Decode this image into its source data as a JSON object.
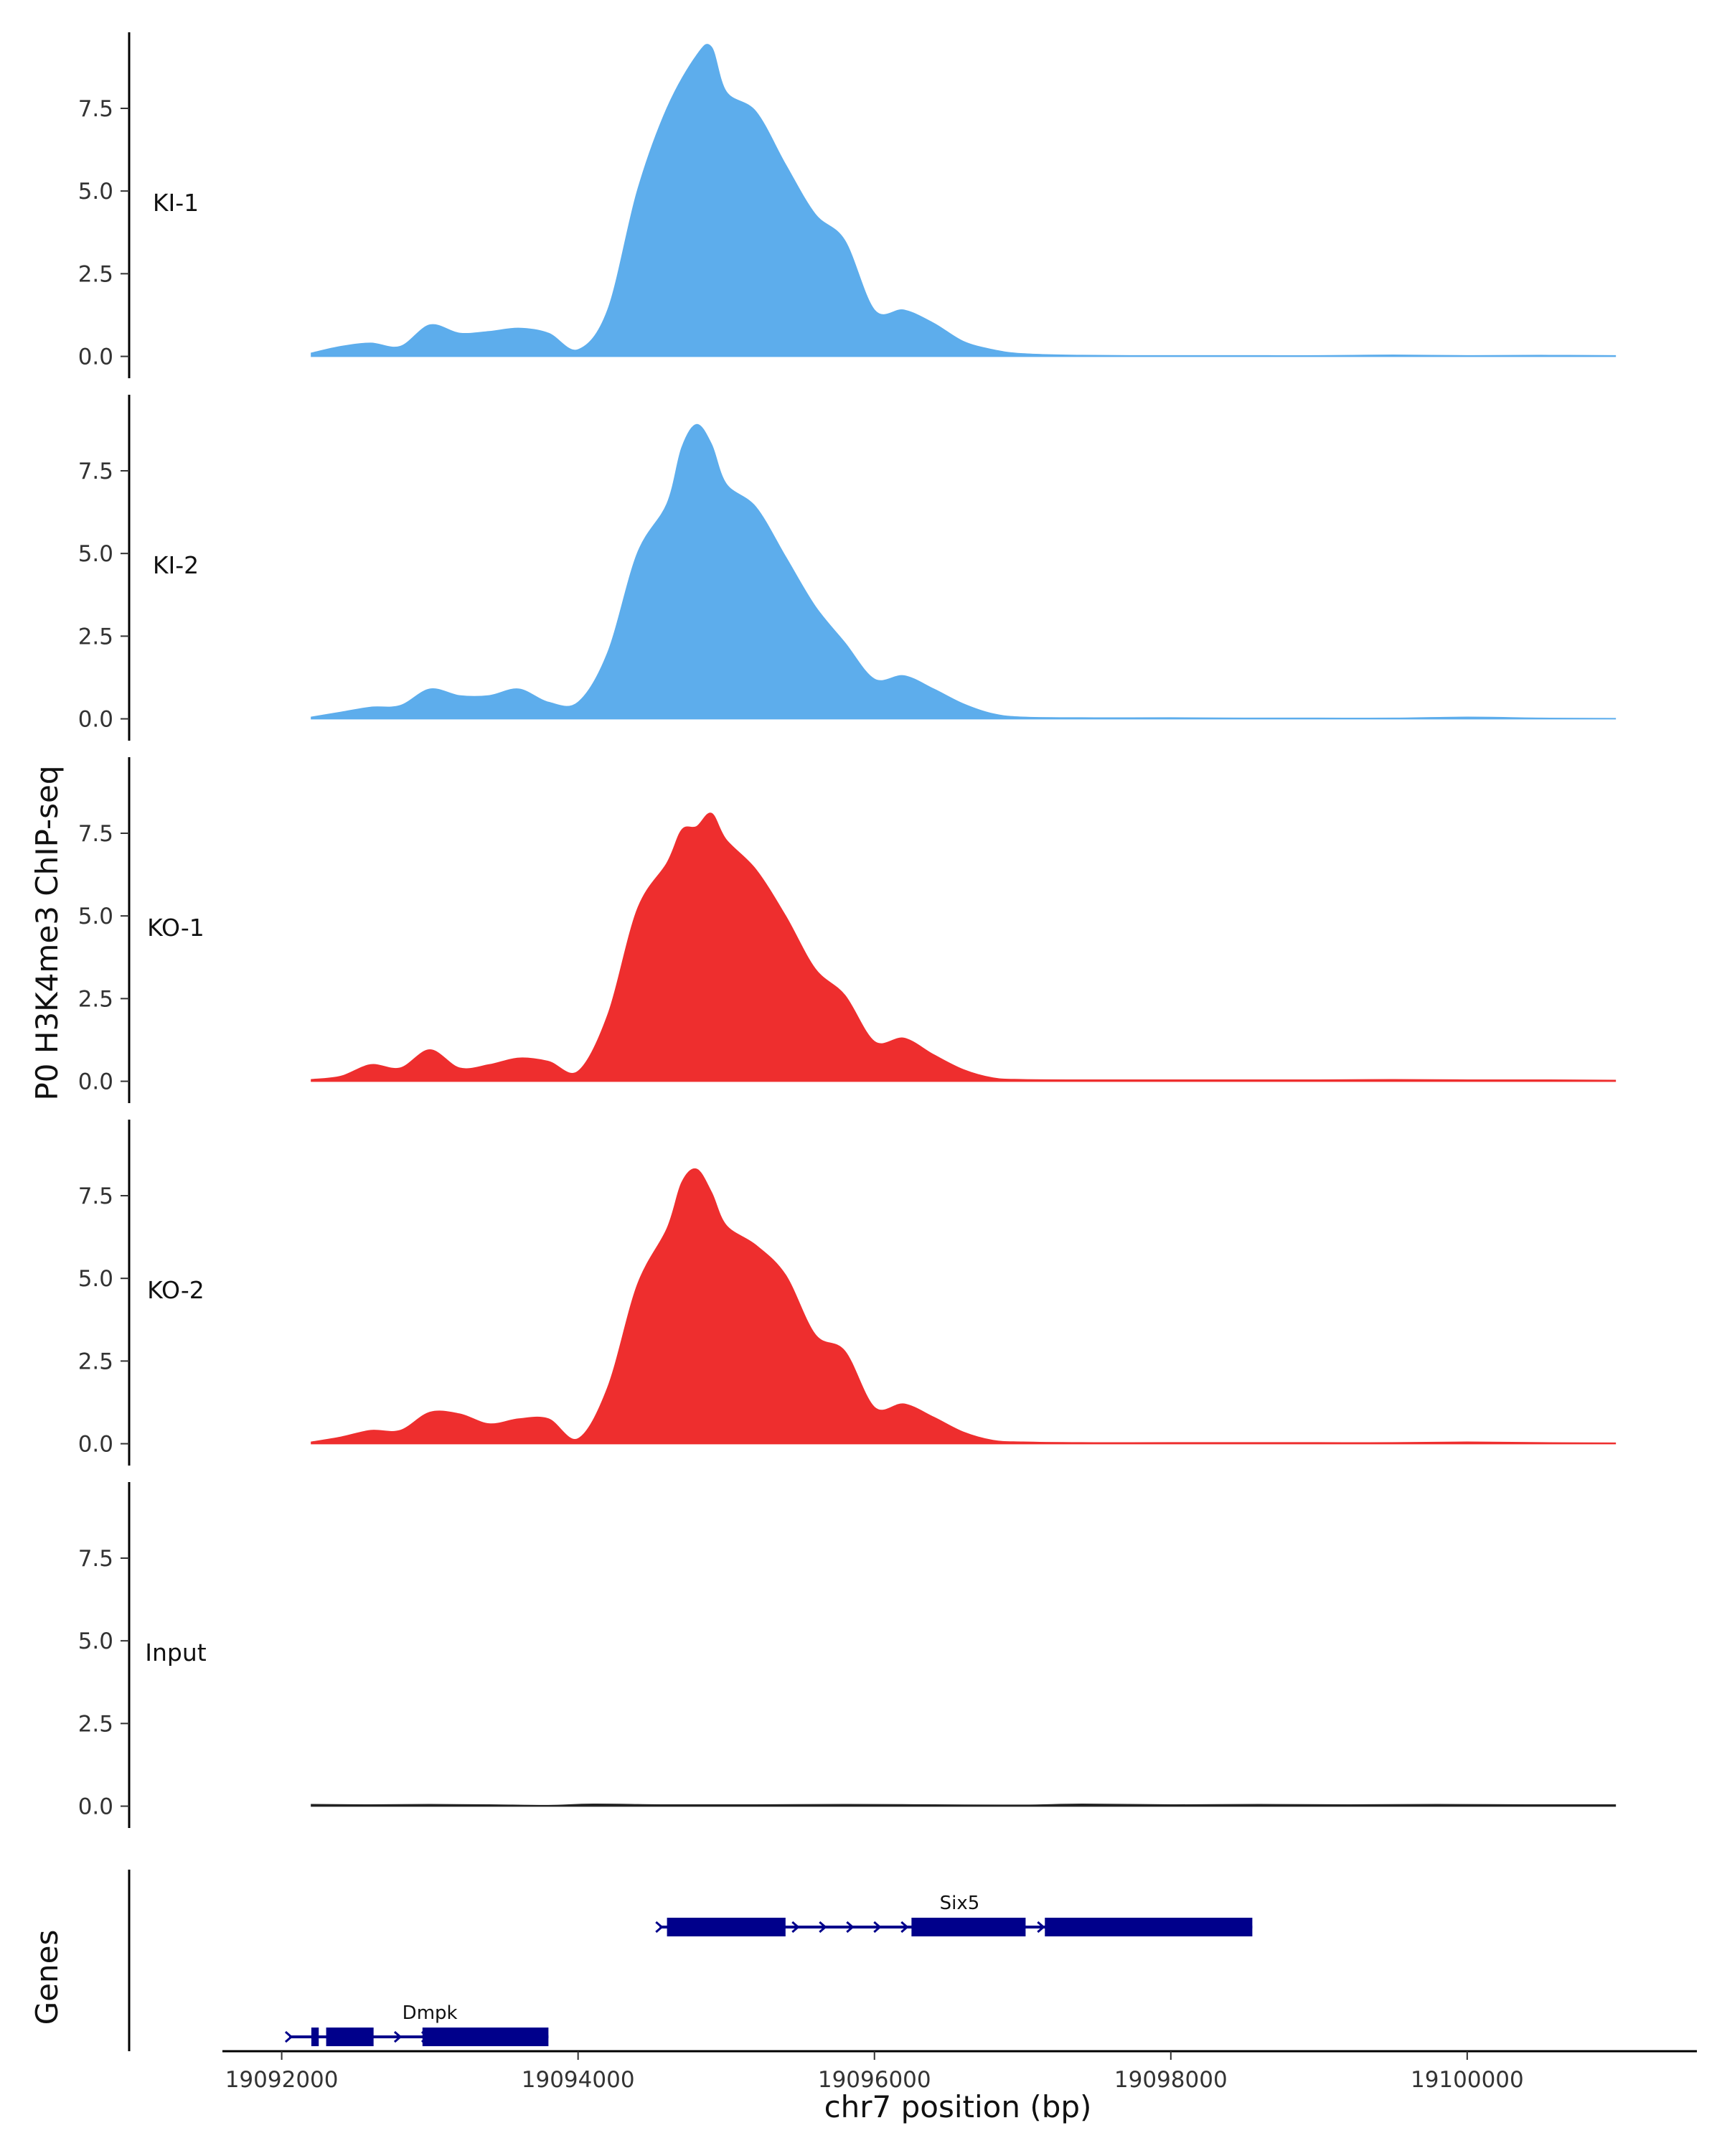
{
  "chart_data": {
    "type": "area",
    "ylabel": "P0 H3K4me3 ChIP-seq",
    "xlabel": "chr7 position (bp)",
    "genes_label": "Genes",
    "xlim": [
      19091600,
      19101550
    ],
    "xticks": [
      19092000,
      19094000,
      19096000,
      19098000,
      19100000
    ],
    "xtick_labels": [
      "19092000",
      "19094000",
      "19096000",
      "19098000",
      "19100000"
    ],
    "ylim": [
      -0.4,
      9.8
    ],
    "yticks": [
      0.0,
      2.5,
      5.0,
      7.5
    ],
    "ytick_labels": [
      "0.0",
      "2.5",
      "5.0",
      "7.5"
    ],
    "tracks": [
      {
        "name": "KI-1",
        "color": "#5DADEC",
        "x": [
          19092200,
          19092400,
          19092600,
          19092800,
          19093000,
          19093200,
          19093400,
          19093600,
          19093800,
          19094000,
          19094200,
          19094400,
          19094600,
          19094800,
          19094900,
          19095000,
          19095200,
          19095400,
          19095600,
          19095800,
          19096000,
          19096200,
          19096400,
          19096600,
          19096800,
          19097000,
          19097400,
          19098000,
          19098500,
          19099000,
          19099500,
          19100000,
          19100500,
          19101000
        ],
        "y": [
          0.1,
          0.3,
          0.4,
          0.3,
          0.95,
          0.7,
          0.75,
          0.85,
          0.7,
          0.2,
          1.4,
          5.0,
          7.5,
          9.1,
          9.35,
          8.0,
          7.4,
          5.8,
          4.3,
          3.5,
          1.4,
          1.4,
          1.0,
          0.45,
          0.2,
          0.08,
          0.03,
          0.02,
          0.02,
          0.02,
          0.04,
          0.02,
          0.03,
          0.02
        ]
      },
      {
        "name": "KI-2",
        "color": "#5DADEC",
        "x": [
          19092200,
          19092400,
          19092600,
          19092800,
          19093000,
          19093200,
          19093400,
          19093600,
          19093800,
          19094000,
          19094200,
          19094400,
          19094600,
          19094700,
          19094800,
          19094900,
          19095000,
          19095200,
          19095400,
          19095600,
          19095800,
          19096000,
          19096200,
          19096400,
          19096600,
          19096800,
          19097000,
          19097400,
          19098000,
          19098500,
          19099000,
          19099500,
          19100000,
          19100500,
          19101000
        ],
        "y": [
          0.05,
          0.2,
          0.35,
          0.4,
          0.9,
          0.7,
          0.7,
          0.9,
          0.5,
          0.5,
          2.0,
          5.0,
          6.5,
          8.2,
          8.9,
          8.3,
          7.1,
          6.4,
          4.9,
          3.4,
          2.3,
          1.2,
          1.3,
          0.9,
          0.45,
          0.15,
          0.05,
          0.03,
          0.03,
          0.02,
          0.02,
          0.02,
          0.05,
          0.02,
          0.01
        ]
      },
      {
        "name": "KO-1",
        "color": "#EE2E2E",
        "x": [
          19092200,
          19092400,
          19092600,
          19092800,
          19093000,
          19093200,
          19093400,
          19093600,
          19093800,
          19094000,
          19094200,
          19094400,
          19094600,
          19094700,
          19094800,
          19094900,
          19095000,
          19095200,
          19095400,
          19095600,
          19095800,
          19096000,
          19096200,
          19096400,
          19096600,
          19096800,
          19097000,
          19097400,
          19098000,
          19098500,
          19099000,
          19099500,
          19100000,
          19100500,
          19101000
        ],
        "y": [
          0.05,
          0.15,
          0.5,
          0.4,
          0.95,
          0.4,
          0.5,
          0.7,
          0.6,
          0.3,
          2.0,
          5.2,
          6.6,
          7.6,
          7.7,
          8.1,
          7.3,
          6.4,
          5.0,
          3.4,
          2.6,
          1.2,
          1.3,
          0.8,
          0.35,
          0.1,
          0.05,
          0.04,
          0.04,
          0.04,
          0.04,
          0.05,
          0.04,
          0.04,
          0.03
        ]
      },
      {
        "name": "KO-2",
        "color": "#EE2E2E",
        "x": [
          19092200,
          19092400,
          19092600,
          19092800,
          19093000,
          19093200,
          19093400,
          19093600,
          19093800,
          19094000,
          19094200,
          19094400,
          19094600,
          19094700,
          19094800,
          19094900,
          19095000,
          19095200,
          19095400,
          19095600,
          19095800,
          19096000,
          19096200,
          19096400,
          19096600,
          19096800,
          19097000,
          19097400,
          19098000,
          19098500,
          19099000,
          19099500,
          19100000,
          19100500,
          19101000
        ],
        "y": [
          0.05,
          0.2,
          0.4,
          0.4,
          0.95,
          0.9,
          0.6,
          0.75,
          0.75,
          0.15,
          1.7,
          4.8,
          6.5,
          7.9,
          8.3,
          7.6,
          6.6,
          6.0,
          5.1,
          3.3,
          2.8,
          1.1,
          1.2,
          0.8,
          0.35,
          0.1,
          0.05,
          0.03,
          0.03,
          0.03,
          0.03,
          0.03,
          0.05,
          0.03,
          0.02
        ]
      },
      {
        "name": "Input",
        "color": "#222222",
        "x": [
          19092200,
          19092600,
          19093000,
          19093400,
          19093800,
          19094100,
          19094600,
          19095200,
          19095800,
          19096400,
          19097000,
          19097400,
          19098000,
          19098600,
          19099200,
          19099800,
          19100400,
          19101000
        ],
        "y": [
          0.05,
          0.04,
          0.05,
          0.04,
          0.02,
          0.06,
          0.04,
          0.04,
          0.05,
          0.04,
          0.03,
          0.06,
          0.04,
          0.05,
          0.04,
          0.05,
          0.04,
          0.04
        ]
      }
    ],
    "genes": [
      {
        "name": "Six5",
        "color": "#00008B",
        "strand": "+",
        "start": 19094550,
        "end": 19098550,
        "exons": [
          [
            19094600,
            19095400
          ],
          [
            19096250,
            19097020
          ],
          [
            19097150,
            19098550
          ]
        ],
        "row": 1
      },
      {
        "name": "Dmpk",
        "color": "#00008B",
        "strand": "+",
        "start": 19092050,
        "end": 19093800,
        "exons": [
          [
            19092200,
            19092250
          ],
          [
            19092300,
            19092620
          ],
          [
            19092950,
            19093800
          ]
        ],
        "row": 2
      }
    ]
  }
}
